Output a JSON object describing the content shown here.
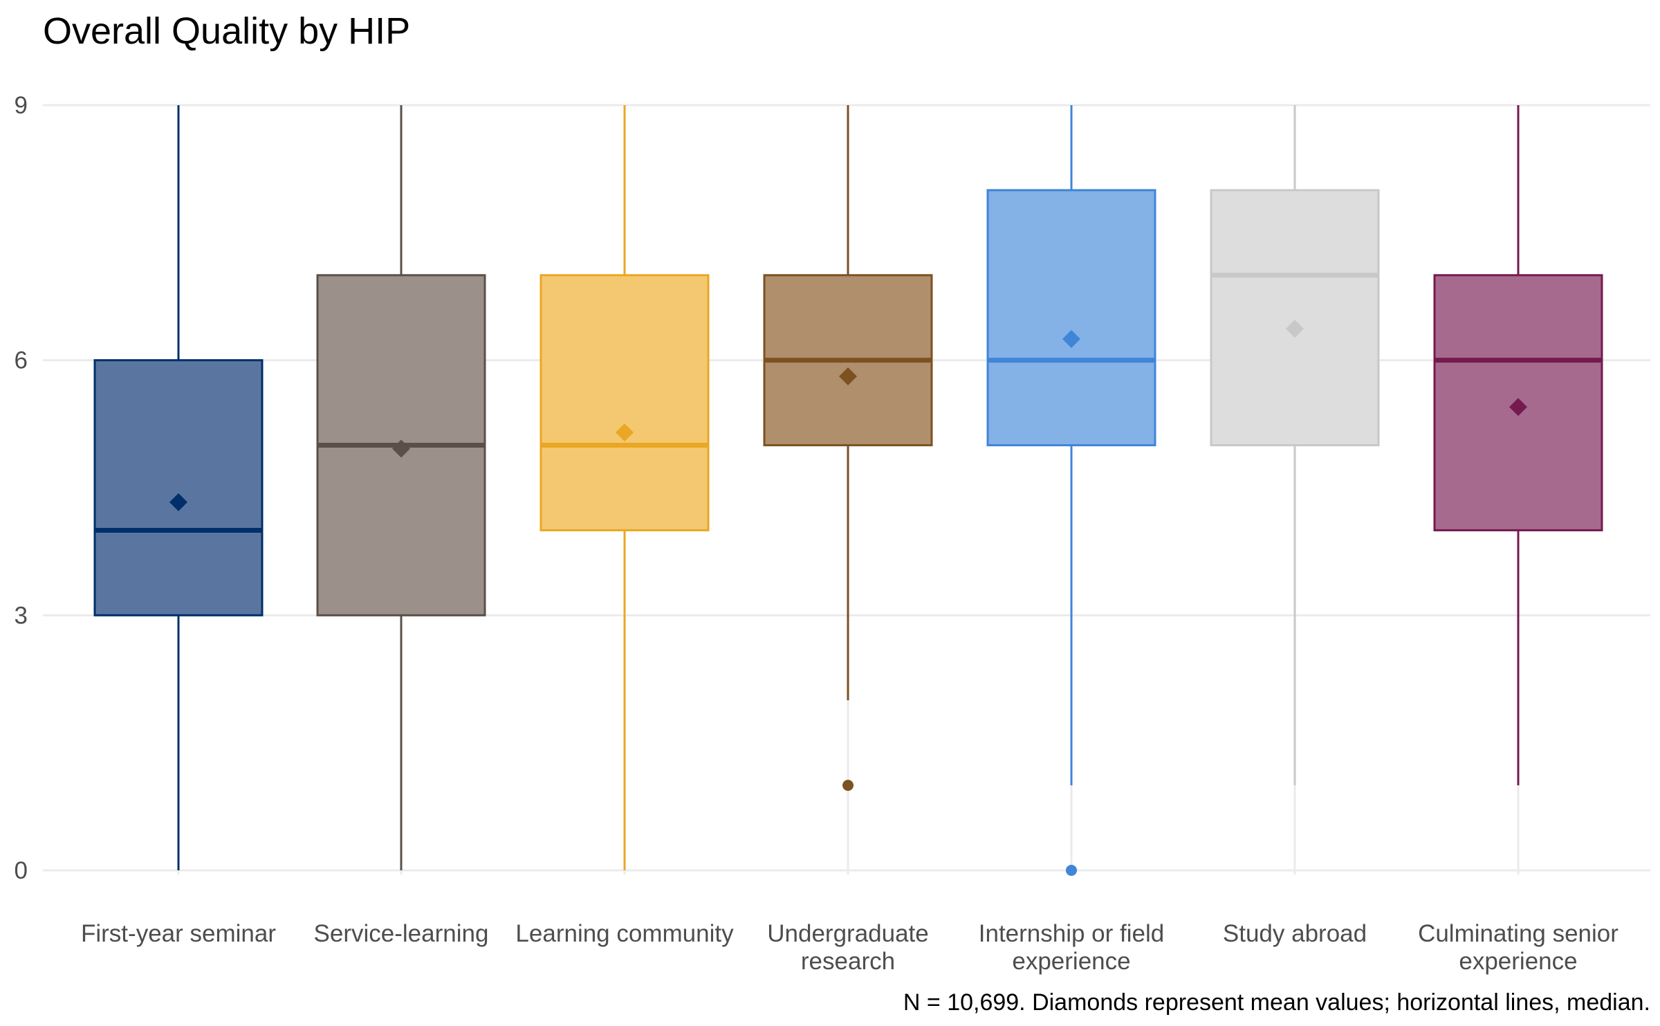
{
  "chart_data": {
    "type": "box",
    "title": "Overall Quality by HIP",
    "caption": "N = 10,699. Diamonds represent mean values; horizontal lines, median.",
    "xlabel": "",
    "ylabel": "",
    "ylim": [
      0,
      9
    ],
    "y_ticks": [
      0,
      3,
      6,
      9
    ],
    "y_tick_labels": [
      "0",
      "3",
      "6",
      "9"
    ],
    "grid": true,
    "legend": "none",
    "categories": [
      "First-year seminar",
      "Service-learning",
      "Learning community",
      "Undergraduate research",
      "Internship or field experience",
      "Study abroad",
      "Culminating senior experience"
    ],
    "category_label_lines": [
      [
        "First-year seminar"
      ],
      [
        "Service-learning"
      ],
      [
        "Learning community"
      ],
      [
        "Undergraduate",
        "research"
      ],
      [
        "Internship or field",
        "experience"
      ],
      [
        "Study abroad"
      ],
      [
        "Culminating senior",
        "experience"
      ]
    ],
    "boxes": [
      {
        "category": "First-year seminar",
        "whisker_low": 0,
        "q1": 3,
        "median": 4,
        "q3": 6,
        "whisker_high": 9,
        "mean": 4.33,
        "outliers": [],
        "color": "#002F6C",
        "fill": "#5A76A0"
      },
      {
        "category": "Service-learning",
        "whisker_low": 0,
        "q1": 3,
        "median": 5,
        "q3": 7,
        "whisker_high": 9,
        "mean": 4.96,
        "outliers": [],
        "color": "#5B5048",
        "fill": "#9B918A"
      },
      {
        "category": "Learning community",
        "whisker_low": 0,
        "q1": 4,
        "median": 5,
        "q3": 7,
        "whisker_high": 9,
        "mean": 5.15,
        "outliers": [],
        "color": "#EAA723",
        "fill": "#F4C870"
      },
      {
        "category": "Undergraduate research",
        "whisker_low": 2,
        "q1": 5,
        "median": 6,
        "q3": 7,
        "whisker_high": 9,
        "mean": 5.81,
        "outliers": [
          1
        ],
        "color": "#7B5220",
        "fill": "#B08F6C"
      },
      {
        "category": "Internship or field experience",
        "whisker_low": 1,
        "q1": 5,
        "median": 6,
        "q3": 8,
        "whisker_high": 9,
        "mean": 6.25,
        "outliers": [
          0
        ],
        "color": "#3F85D8",
        "fill": "#84B1E6"
      },
      {
        "category": "Study abroad",
        "whisker_low": 1,
        "q1": 5,
        "median": 7,
        "q3": 8,
        "whisker_high": 9,
        "mean": 6.37,
        "outliers": [],
        "color": "#C8C8C8",
        "fill": "#DDDDDD"
      },
      {
        "category": "Culminating senior experience",
        "whisker_low": 1,
        "q1": 4,
        "median": 6,
        "q3": 7,
        "whisker_high": 9,
        "mean": 5.45,
        "outliers": [],
        "color": "#751A4E",
        "fill": "#A76A8F"
      }
    ]
  }
}
